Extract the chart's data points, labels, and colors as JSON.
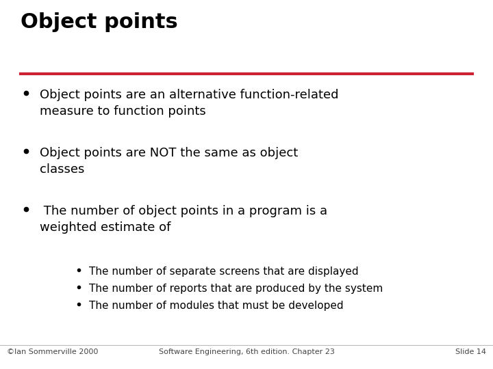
{
  "title": "Object points",
  "title_color": "#000000",
  "title_fontsize": 22,
  "line_color": "#cc2233",
  "background_color": "#ffffff",
  "bullet_color": "#000000",
  "bullet_text_color": "#000000",
  "bullet_fontsize": 13,
  "sub_bullet_fontsize": 11,
  "sub_bullet_color": "#000000",
  "footer_color": "#444444",
  "footer_fontsize": 8,
  "bullets": [
    "Object points are an alternative function-related\nmeasure to function points",
    "Object points are NOT the same as object\nclasses",
    " The number of object points in a program is a\nweighted estimate of"
  ],
  "sub_bullets": [
    "The number of separate screens that are displayed",
    "The number of reports that are produced by the system",
    "The number of modules that must be developed"
  ],
  "footer_left": "©Ian Sommerville 2000",
  "footer_center": "Software Engineering, 6th edition. Chapter 23",
  "footer_right": "Slide 14"
}
